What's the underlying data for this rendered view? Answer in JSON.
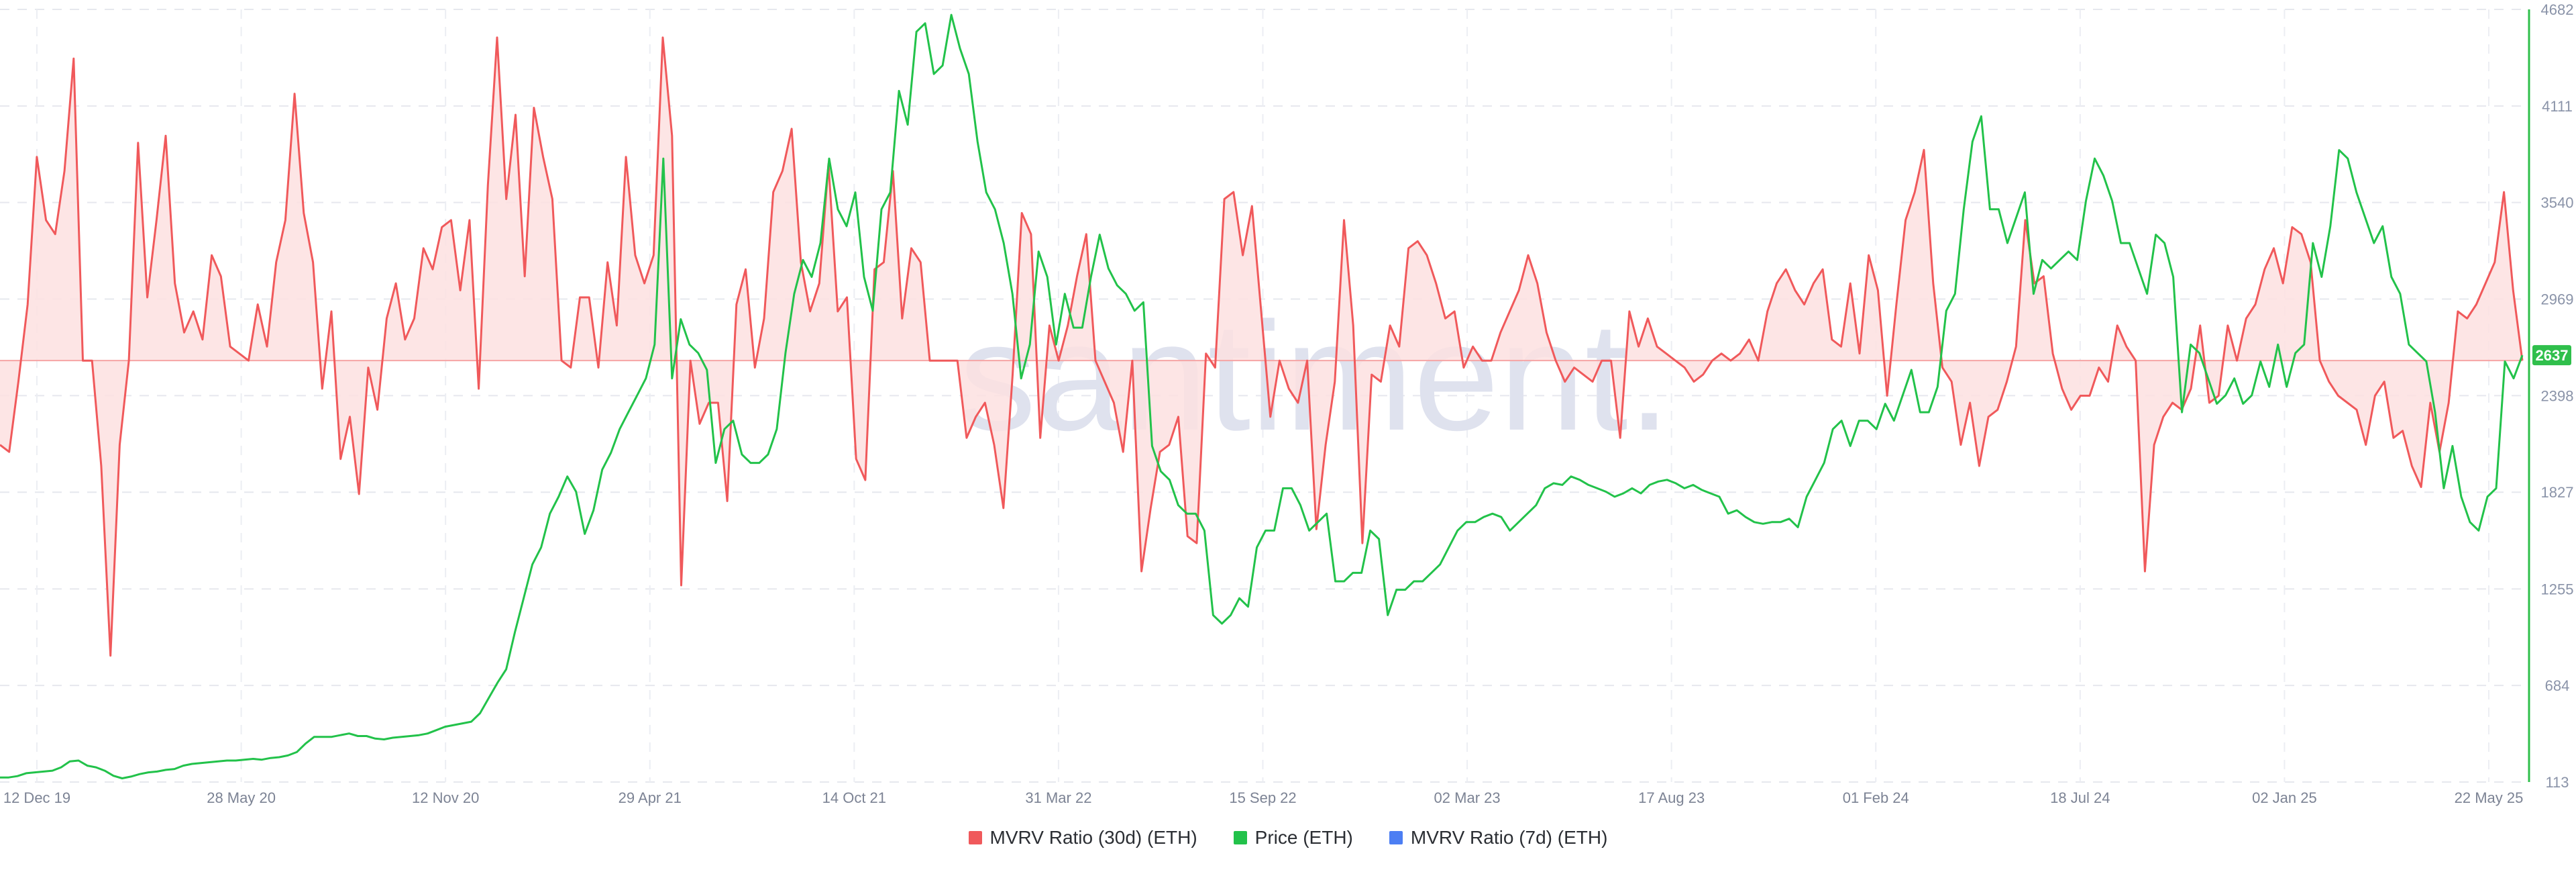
{
  "chart_data": {
    "type": "line",
    "watermark": "santiment.",
    "x_tick_labels": [
      "12 Dec 19",
      "28 May 20",
      "12 Nov 20",
      "29 Apr 21",
      "14 Oct 21",
      "31 Mar 22",
      "15 Sep 22",
      "02 Mar 23",
      "17 Aug 23",
      "01 Feb 24",
      "18 Jul 24",
      "02 Jan 25",
      "22 May 25"
    ],
    "y_right": {
      "ticks": [
        "4682",
        "4111",
        "3540",
        "2969",
        "2398",
        "1827",
        "1255",
        "684",
        "113"
      ],
      "min": 113,
      "max": 4682,
      "current_value_label": "2637"
    },
    "y_left": {
      "min": -0.6,
      "max": 0.5,
      "baseline": 0.0
    },
    "gridlines": true,
    "legend_position": "bottom",
    "colors": {
      "mvrv30": "#f0595b",
      "price": "#22c24a",
      "mvrv7": "#4c7ef3",
      "fill": "#fde0e0",
      "axis_right": "#2fbf4b"
    },
    "series": [
      {
        "name": "MVRV Ratio (30d) (ETH)",
        "values": [
          -0.12,
          -0.13,
          -0.03,
          0.08,
          0.29,
          0.2,
          0.18,
          0.27,
          0.43,
          0.0,
          0.0,
          -0.15,
          -0.42,
          -0.12,
          0.0,
          0.31,
          0.09,
          0.2,
          0.32,
          0.11,
          0.04,
          0.07,
          0.03,
          0.15,
          0.12,
          0.02,
          0.01,
          0.0,
          0.08,
          0.02,
          0.14,
          0.2,
          0.38,
          0.21,
          0.14,
          -0.04,
          0.07,
          -0.14,
          -0.08,
          -0.19,
          -0.01,
          -0.07,
          0.06,
          0.11,
          0.03,
          0.06,
          0.16,
          0.13,
          0.19,
          0.2,
          0.1,
          0.2,
          -0.04,
          0.25,
          0.46,
          0.23,
          0.35,
          0.12,
          0.36,
          0.29,
          0.23,
          0.0,
          -0.01,
          0.09,
          0.09,
          -0.01,
          0.14,
          0.05,
          0.29,
          0.15,
          0.11,
          0.15,
          0.46,
          0.32,
          -0.32,
          0.0,
          -0.09,
          -0.06,
          -0.06,
          -0.2,
          0.08,
          0.13,
          -0.01,
          0.06,
          0.24,
          0.27,
          0.33,
          0.14,
          0.07,
          0.11,
          0.28,
          0.07,
          0.09,
          -0.14,
          -0.17,
          0.13,
          0.14,
          0.27,
          0.06,
          0.16,
          0.14,
          0.0,
          0.0,
          0.0,
          0.0,
          -0.11,
          -0.08,
          -0.06,
          -0.12,
          -0.21,
          -0.02,
          0.21,
          0.18,
          -0.11,
          0.05,
          0.0,
          0.05,
          0.12,
          0.18,
          0.0,
          -0.03,
          -0.06,
          -0.13,
          0.0,
          -0.3,
          -0.21,
          -0.13,
          -0.12,
          -0.08,
          -0.25,
          -0.26,
          0.01,
          -0.01,
          0.23,
          0.24,
          0.15,
          0.22,
          0.07,
          -0.08,
          0.0,
          -0.04,
          -0.06,
          0.0,
          -0.24,
          -0.12,
          -0.03,
          0.2,
          0.05,
          -0.26,
          -0.02,
          -0.03,
          0.05,
          0.02,
          0.16,
          0.17,
          0.15,
          0.11,
          0.06,
          0.07,
          -0.01,
          0.02,
          0.0,
          0.0,
          0.04,
          0.07,
          0.1,
          0.15,
          0.11,
          0.04,
          0.0,
          -0.03,
          -0.01,
          -0.02,
          -0.03,
          0.0,
          0.0,
          -0.11,
          0.07,
          0.02,
          0.06,
          0.02,
          0.01,
          0.0,
          -0.01,
          -0.03,
          -0.02,
          0.0,
          0.01,
          0.0,
          0.01,
          0.03,
          0.0,
          0.07,
          0.11,
          0.13,
          0.1,
          0.08,
          0.11,
          0.13,
          0.03,
          0.02,
          0.11,
          0.01,
          0.15,
          0.1,
          -0.05,
          0.08,
          0.2,
          0.24,
          0.3,
          0.11,
          -0.01,
          -0.03,
          -0.12,
          -0.06,
          -0.15,
          -0.08,
          -0.07,
          -0.03,
          0.02,
          0.2,
          0.11,
          0.12,
          0.01,
          -0.04,
          -0.07,
          -0.05,
          -0.05,
          -0.01,
          -0.03,
          0.05,
          0.02,
          0.0,
          -0.3,
          -0.12,
          -0.08,
          -0.06,
          -0.07,
          -0.04,
          0.05,
          -0.06,
          -0.05,
          0.05,
          0.0,
          0.06,
          0.08,
          0.13,
          0.16,
          0.11,
          0.19,
          0.18,
          0.14,
          0.0,
          -0.03,
          -0.05,
          -0.06,
          -0.07,
          -0.12,
          -0.05,
          -0.03,
          -0.11,
          -0.1,
          -0.15,
          -0.18,
          -0.06,
          -0.13,
          -0.06,
          0.07,
          0.06,
          0.08,
          0.11,
          0.14,
          0.24,
          0.1,
          0.0
        ],
        "x_sample_dates_note": "",
        "extremes": {
          "max": 0.46,
          "min": -0.42
        }
      },
      {
        "name": "Price (ETH)",
        "values": [
          140,
          140,
          148,
          165,
          170,
          175,
          180,
          200,
          235,
          240,
          210,
          200,
          180,
          150,
          135,
          145,
          160,
          170,
          175,
          185,
          190,
          210,
          220,
          225,
          230,
          235,
          240,
          240,
          245,
          250,
          245,
          255,
          260,
          270,
          290,
          340,
          380,
          380,
          380,
          390,
          400,
          385,
          385,
          370,
          365,
          375,
          380,
          385,
          390,
          400,
          420,
          440,
          450,
          460,
          470,
          520,
          610,
          700,
          780,
          1000,
          1200,
          1400,
          1500,
          1700,
          1800,
          1920,
          1830,
          1580,
          1720,
          1960,
          2060,
          2200,
          2300,
          2400,
          2500,
          2700,
          3800,
          2500,
          2850,
          2700,
          2650,
          2550,
          2000,
          2200,
          2250,
          2050,
          2000,
          2000,
          2050,
          2200,
          2650,
          3000,
          3200,
          3100,
          3300,
          3800,
          3500,
          3400,
          3600,
          3100,
          2900,
          3500,
          3600,
          4200,
          4000,
          4550,
          4600,
          4300,
          4350,
          4650,
          4450,
          4300,
          3900,
          3600,
          3500,
          3300,
          3000,
          2500,
          2700,
          3250,
          3100,
          2700,
          3000,
          2800,
          2800,
          3100,
          3350,
          3150,
          3050,
          3000,
          2900,
          2950,
          2100,
          1950,
          1900,
          1750,
          1700,
          1700,
          1600,
          1100,
          1050,
          1100,
          1200,
          1150,
          1500,
          1600,
          1600,
          1850,
          1850,
          1750,
          1600,
          1650,
          1700,
          1300,
          1300,
          1350,
          1350,
          1600,
          1550,
          1100,
          1250,
          1250,
          1300,
          1300,
          1350,
          1400,
          1500,
          1600,
          1650,
          1650,
          1680,
          1700,
          1680,
          1600,
          1650,
          1700,
          1750,
          1850,
          1880,
          1870,
          1920,
          1900,
          1870,
          1850,
          1830,
          1800,
          1820,
          1850,
          1820,
          1870,
          1890,
          1900,
          1880,
          1850,
          1870,
          1840,
          1820,
          1800,
          1700,
          1720,
          1680,
          1650,
          1640,
          1650,
          1650,
          1670,
          1620,
          1800,
          1900,
          2000,
          2200,
          2250,
          2100,
          2250,
          2250,
          2200,
          2350,
          2250,
          2400,
          2550,
          2300,
          2300,
          2450,
          2900,
          3000,
          3500,
          3900,
          4050,
          3500,
          3500,
          3300,
          3450,
          3600,
          3000,
          3200,
          3150,
          3200,
          3250,
          3200,
          3550,
          3800,
          3700,
          3550,
          3300,
          3300,
          3150,
          3000,
          3350,
          3300,
          3100,
          2300,
          2700,
          2650,
          2500,
          2350,
          2400,
          2500,
          2350,
          2400,
          2600,
          2450,
          2700,
          2450,
          2650,
          2700,
          3300,
          3100,
          3400,
          3850,
          3800,
          3600,
          3450,
          3300,
          3400,
          3100,
          3000,
          2700,
          2650,
          2600,
          2300,
          1850,
          2100,
          1800,
          1650,
          1600,
          1800,
          1850,
          2600,
          2500,
          2637
        ]
      },
      {
        "name": "MVRV Ratio (7d) (ETH)",
        "values": []
      }
    ]
  },
  "legend": [
    {
      "label": "MVRV Ratio (30d) (ETH)",
      "color": "#f0595b"
    },
    {
      "label": "Price (ETH)",
      "color": "#22c24a"
    },
    {
      "label": "MVRV Ratio (7d) (ETH)",
      "color": "#4c7ef3"
    }
  ]
}
